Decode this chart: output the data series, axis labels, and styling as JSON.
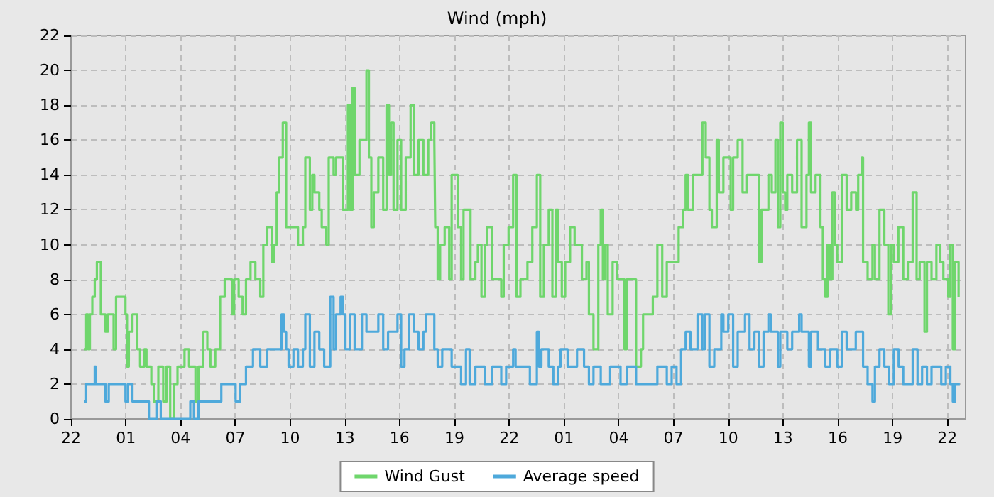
{
  "chart_data": {
    "type": "step",
    "title": "Wind (mph)",
    "xlim": [
      "--01-01T22:00",
      "--01-03T23:00"
    ],
    "ylim": [
      0,
      22
    ],
    "xticks": [
      {
        "value": "--01-01T22:00",
        "label": "22"
      },
      {
        "value": "--01-02T01:00",
        "label": "01"
      },
      {
        "value": "--01-02T04:00",
        "label": "04"
      },
      {
        "value": "--01-02T07:00",
        "label": "07"
      },
      {
        "value": "--01-02T10:00",
        "label": "10"
      },
      {
        "value": "--01-02T13:00",
        "label": "13"
      },
      {
        "value": "--01-02T16:00",
        "label": "16"
      },
      {
        "value": "--01-02T19:00",
        "label": "19"
      },
      {
        "value": "--01-02T22:00",
        "label": "22"
      },
      {
        "value": "--01-03T01:00",
        "label": "01"
      },
      {
        "value": "--01-03T04:00",
        "label": "04"
      },
      {
        "value": "--01-03T07:00",
        "label": "07"
      },
      {
        "value": "--01-03T10:00",
        "label": "10"
      },
      {
        "value": "--01-03T13:00",
        "label": "13"
      },
      {
        "value": "--01-03T16:00",
        "label": "16"
      },
      {
        "value": "--01-03T19:00",
        "label": "19"
      },
      {
        "value": "--01-03T22:00",
        "label": "22"
      }
    ],
    "yticks": [
      0,
      2,
      4,
      6,
      8,
      10,
      12,
      14,
      16,
      18,
      20,
      22
    ],
    "grid": true,
    "legend": "bottom",
    "marker": "none",
    "line_style": "solid",
    "series": [
      {
        "name": "Wind Gust",
        "color": "#6fd66c",
        "x": [
          "--01-01T22:42",
          "--01-01T22:50",
          "--01-01T22:56",
          "--01-01T23:02",
          "--01-01T23:10",
          "--01-01T23:18",
          "--01-01T23:25",
          "--01-01T23:38",
          "--01-01T23:53",
          "--01-02T00:01",
          "--01-02T00:20",
          "--01-02T00:28",
          "--01-02T00:59",
          "--01-02T01:04",
          "--01-02T01:10",
          "--01-02T01:22",
          "--01-02T01:38",
          "--01-02T01:47",
          "--01-02T02:01",
          "--01-02T02:08",
          "--01-02T02:24",
          "--01-02T02:32",
          "--01-02T02:47",
          "--01-02T03:03",
          "--01-02T03:14",
          "--01-02T03:26",
          "--01-02T03:39",
          "--01-02T03:50",
          "--01-02T04:13",
          "--01-02T04:28",
          "--01-02T04:49",
          "--01-02T04:59",
          "--01-02T05:15",
          "--01-02T05:28",
          "--01-02T05:38",
          "--01-02T05:54",
          "--01-02T06:10",
          "--01-02T06:25",
          "--01-02T06:49",
          "--01-02T06:56",
          "--01-02T07:11",
          "--01-02T07:24",
          "--01-02T07:35",
          "--01-02T07:50",
          "--01-02T08:06",
          "--01-02T08:22",
          "--01-02T08:32",
          "--01-02T08:45",
          "--01-02T09:01",
          "--01-02T09:08",
          "--01-02T09:16",
          "--01-02T09:24",
          "--01-02T09:36",
          "--01-02T09:47",
          "--01-02T10:26",
          "--01-02T10:42",
          "--01-02T10:50",
          "--01-02T11:05",
          "--01-02T11:13",
          "--01-02T11:20",
          "--01-02T11:36",
          "--01-02T11:44",
          "--01-02T11:59",
          "--01-02T12:07",
          "--01-02T12:23",
          "--01-02T12:31",
          "--01-02T12:54",
          "--01-02T13:10",
          "--01-02T13:17",
          "--01-02T13:25",
          "--01-02T13:32",
          "--01-02T13:48",
          "--01-02T14:11",
          "--01-02T14:19",
          "--01-02T14:27",
          "--01-02T14:35",
          "--01-02T14:50",
          "--01-02T15:06",
          "--01-02T15:17",
          "--01-02T15:25",
          "--01-02T15:32",
          "--01-02T15:40",
          "--01-02T15:53",
          "--01-02T16:05",
          "--01-02T16:20",
          "--01-02T16:36",
          "--01-02T16:47",
          "--01-02T17:02",
          "--01-02T17:18",
          "--01-02T17:34",
          "--01-02T17:44",
          "--01-02T17:54",
          "--01-02T17:57",
          "--01-02T18:05",
          "--01-02T18:13",
          "--01-02T18:28",
          "--01-02T18:43",
          "--01-02T18:51",
          "--01-02T19:11",
          "--01-02T19:22",
          "--01-02T19:30",
          "--01-02T19:53",
          "--01-02T20:09",
          "--01-02T20:17",
          "--01-02T20:29",
          "--01-02T20:40",
          "--01-02T20:48",
          "--01-02T21:04",
          "--01-02T21:34",
          "--01-02T21:42",
          "--01-02T21:58",
          "--01-02T22:13",
          "--01-02T22:24",
          "--01-02T22:37",
          "--01-02T23:00",
          "--01-02T23:16",
          "--01-02T23:31",
          "--01-02T23:42",
          "--01-02T23:54",
          "--01-03T00:10",
          "--01-03T00:22",
          "--01-03T00:33",
          "--01-03T00:41",
          "--01-03T00:53",
          "--01-03T01:04",
          "--01-03T01:20",
          "--01-03T01:35",
          "--01-03T01:59",
          "--01-03T02:14",
          "--01-03T02:22",
          "--01-03T02:37",
          "--01-03T02:53",
          "--01-03T03:01",
          "--01-03T03:08",
          "--01-03T03:16",
          "--01-03T03:24",
          "--01-03T03:40",
          "--01-03T03:55",
          "--01-03T04:19",
          "--01-03T04:26",
          "--01-03T04:57",
          "--01-03T05:13",
          "--01-03T05:20",
          "--01-03T05:52",
          "--01-03T06:07",
          "--01-03T06:23",
          "--01-03T06:38",
          "--01-03T07:17",
          "--01-03T07:32",
          "--01-03T07:40",
          "--01-03T07:48",
          "--01-03T08:04",
          "--01-03T08:35",
          "--01-03T08:46",
          "--01-03T08:58",
          "--01-03T09:06",
          "--01-03T09:22",
          "--01-03T09:29",
          "--01-03T09:44",
          "--01-03T10:08",
          "--01-03T10:16",
          "--01-03T10:31",
          "--01-03T10:47",
          "--01-03T11:02",
          "--01-03T11:41",
          "--01-03T11:49",
          "--01-03T12:12",
          "--01-03T12:23",
          "--01-03T12:35",
          "--01-03T12:43",
          "--01-03T12:51",
          "--01-03T12:59",
          "--01-03T13:07",
          "--01-03T13:14",
          "--01-03T13:30",
          "--01-03T13:46",
          "--01-03T14:01",
          "--01-03T14:17",
          "--01-03T14:25",
          "--01-03T14:32",
          "--01-03T14:47",
          "--01-03T15:03",
          "--01-03T15:11",
          "--01-03T15:19",
          "--01-03T15:26",
          "--01-03T15:34",
          "--01-03T15:42",
          "--01-03T15:50",
          "--01-03T15:58",
          "--01-03T16:13",
          "--01-03T16:29",
          "--01-03T16:44",
          "--01-03T17:00",
          "--01-03T17:07",
          "--01-03T17:19",
          "--01-03T17:23",
          "--01-03T17:38",
          "--01-03T17:54",
          "--01-03T18:02",
          "--01-03T18:17",
          "--01-03T18:33",
          "--01-03T18:46",
          "--01-03T18:56",
          "--01-03T19:04",
          "--01-03T19:19",
          "--01-03T19:35",
          "--01-03T19:50",
          "--01-03T20:06",
          "--01-03T20:19",
          "--01-03T20:29",
          "--01-03T20:45",
          "--01-03T20:53",
          "--01-03T21:08",
          "--01-03T21:24",
          "--01-03T21:37",
          "--01-03T21:47",
          "--01-03T22:03",
          "--01-03T22:10",
          "--01-03T22:18",
          "--01-03T22:26",
          "--01-03T22:37"
        ],
        "values": [
          4,
          6,
          4,
          6,
          7,
          8,
          9,
          6,
          5,
          6,
          4,
          7,
          6,
          3,
          5,
          6,
          4,
          3,
          4,
          3,
          2,
          1,
          3,
          1,
          3,
          0,
          2,
          3,
          4,
          3,
          1,
          3,
          5,
          4,
          3,
          4,
          7,
          8,
          6,
          8,
          7,
          6,
          8,
          9,
          8,
          7,
          10,
          11,
          9,
          10,
          13,
          15,
          17,
          11,
          10,
          11,
          15,
          12,
          14,
          13,
          12,
          11,
          10,
          15,
          14,
          15,
          12,
          18,
          12,
          19,
          14,
          16,
          20,
          15,
          11,
          13,
          15,
          12,
          18,
          14,
          17,
          12,
          16,
          12,
          15,
          18,
          14,
          16,
          14,
          16,
          17,
          16,
          11,
          8,
          10,
          11,
          8,
          14,
          11,
          8,
          12,
          8,
          9,
          10,
          7,
          10,
          11,
          8,
          7,
          10,
          11,
          14,
          7,
          8,
          9,
          11,
          14,
          7,
          10,
          12,
          7,
          12,
          9,
          7,
          9,
          11,
          10,
          8,
          9,
          6,
          4,
          10,
          12,
          8,
          10,
          6,
          9,
          8,
          4,
          8,
          3,
          4,
          6,
          7,
          10,
          7,
          9,
          11,
          12,
          14,
          12,
          14,
          17,
          15,
          12,
          11,
          16,
          13,
          15,
          12,
          15,
          16,
          13,
          14,
          9,
          12,
          14,
          13,
          16,
          11,
          17,
          13,
          12,
          14,
          13,
          16,
          11,
          14,
          17,
          13,
          14,
          11,
          8,
          7,
          10,
          8,
          13,
          10,
          9,
          14,
          12,
          13,
          12,
          14,
          15,
          9,
          8,
          10,
          8,
          12,
          10,
          6,
          10,
          9,
          11,
          8,
          9,
          13,
          8,
          9,
          5,
          9,
          8,
          10,
          9,
          8,
          7,
          10,
          4,
          9,
          7
        ]
      },
      {
        "name": "Average speed",
        "color": "#4ea9db",
        "x": [
          "--01-01T22:42",
          "--01-01T22:50",
          "--01-01T23:18",
          "--01-01T23:22",
          "--01-01T23:53",
          "--01-02T00:04",
          "--01-02T00:59",
          "--01-02T01:07",
          "--01-02T01:22",
          "--01-02T02:16",
          "--01-02T02:43",
          "--01-02T02:55",
          "--01-02T04:32",
          "--01-02T04:44",
          "--01-02T04:59",
          "--01-02T06:14",
          "--01-02T07:01",
          "--01-02T07:16",
          "--01-02T07:35",
          "--01-02T07:58",
          "--01-02T08:22",
          "--01-02T08:45",
          "--01-02T09:32",
          "--01-02T09:40",
          "--01-02T09:47",
          "--01-02T09:55",
          "--01-02T10:11",
          "--01-02T10:26",
          "--01-02T10:42",
          "--01-02T10:50",
          "--01-02T11:05",
          "--01-02T11:20",
          "--01-02T11:36",
          "--01-02T11:52",
          "--01-02T12:12",
          "--01-02T12:23",
          "--01-02T12:31",
          "--01-02T12:46",
          "--01-02T12:54",
          "--01-02T13:02",
          "--01-02T13:17",
          "--01-02T13:32",
          "--01-02T13:56",
          "--01-02T14:11",
          "--01-02T14:50",
          "--01-02T15:06",
          "--01-02T15:22",
          "--01-02T15:53",
          "--01-02T16:05",
          "--01-02T16:16",
          "--01-02T16:31",
          "--01-02T16:47",
          "--01-02T17:02",
          "--01-02T17:18",
          "--01-02T17:26",
          "--01-02T17:54",
          "--01-02T18:05",
          "--01-02T18:20",
          "--01-02T18:51",
          "--01-02T19:22",
          "--01-02T19:38",
          "--01-02T19:50",
          "--01-02T20:09",
          "--01-02T20:40",
          "--01-02T21:04",
          "--01-02T21:34",
          "--01-02T21:50",
          "--01-02T22:13",
          "--01-02T22:21",
          "--01-02T23:08",
          "--01-02T23:31",
          "--01-02T23:38",
          "--01-02T23:46",
          "--01-03T00:10",
          "--01-03T00:25",
          "--01-03T00:41",
          "--01-03T00:49",
          "--01-03T01:12",
          "--01-03T01:43",
          "--01-03T02:06",
          "--01-03T02:22",
          "--01-03T02:37",
          "--01-03T03:01",
          "--01-03T03:32",
          "--01-03T04:06",
          "--01-03T04:26",
          "--01-03T04:57",
          "--01-03T06:07",
          "--01-03T06:38",
          "--01-03T06:54",
          "--01-03T07:10",
          "--01-03T07:25",
          "--01-03T07:40",
          "--01-03T07:56",
          "--01-03T08:19",
          "--01-03T08:35",
          "--01-03T08:43",
          "--01-03T08:58",
          "--01-03T09:14",
          "--01-03T09:37",
          "--01-03T09:44",
          "--01-03T10:00",
          "--01-03T10:16",
          "--01-03T10:31",
          "--01-03T10:55",
          "--01-03T11:10",
          "--01-03T11:26",
          "--01-03T11:41",
          "--01-03T11:56",
          "--01-03T12:12",
          "--01-03T12:20",
          "--01-03T12:43",
          "--01-03T12:51",
          "--01-03T13:14",
          "--01-03T13:30",
          "--01-03T13:53",
          "--01-03T14:01",
          "--01-03T14:25",
          "--01-03T14:32",
          "--01-03T14:55",
          "--01-03T15:19",
          "--01-03T15:34",
          "--01-03T15:58",
          "--01-03T16:13",
          "--01-03T16:29",
          "--01-03T16:59",
          "--01-03T17:23",
          "--01-03T17:38",
          "--01-03T17:54",
          "--01-03T18:02",
          "--01-03T18:17",
          "--01-03T18:33",
          "--01-03T18:49",
          "--01-03T19:04",
          "--01-03T19:20",
          "--01-03T19:35",
          "--01-03T20:06",
          "--01-03T20:22",
          "--01-03T20:37",
          "--01-03T20:53",
          "--01-03T21:08",
          "--01-03T21:40",
          "--01-03T21:55",
          "--01-03T22:10",
          "--01-03T22:18",
          "--01-03T22:26",
          "--01-03T22:41"
        ],
        "values": [
          1,
          2,
          3,
          2,
          1,
          2,
          1,
          2,
          1,
          0,
          1,
          0,
          1,
          0,
          1,
          2,
          1,
          2,
          3,
          4,
          3,
          4,
          6,
          5,
          4,
          3,
          4,
          3,
          4,
          6,
          3,
          5,
          4,
          3,
          7,
          4,
          6,
          7,
          6,
          4,
          6,
          4,
          6,
          5,
          6,
          4,
          5,
          6,
          3,
          4,
          6,
          5,
          4,
          5,
          6,
          4,
          3,
          4,
          3,
          2,
          4,
          2,
          3,
          2,
          3,
          2,
          3,
          4,
          3,
          2,
          5,
          3,
          4,
          3,
          2,
          3,
          4,
          3,
          4,
          3,
          2,
          3,
          2,
          3,
          2,
          3,
          2,
          3,
          2,
          3,
          2,
          4,
          5,
          4,
          6,
          4,
          6,
          3,
          4,
          6,
          5,
          6,
          3,
          5,
          6,
          4,
          5,
          3,
          5,
          6,
          5,
          3,
          5,
          4,
          5,
          6,
          5,
          3,
          5,
          4,
          3,
          4,
          3,
          5,
          4,
          5,
          3,
          2,
          1,
          3,
          4,
          3,
          2,
          4,
          3,
          2,
          4,
          2,
          3,
          2,
          3,
          2,
          3,
          2,
          1,
          2,
          2
        ]
      }
    ]
  }
}
